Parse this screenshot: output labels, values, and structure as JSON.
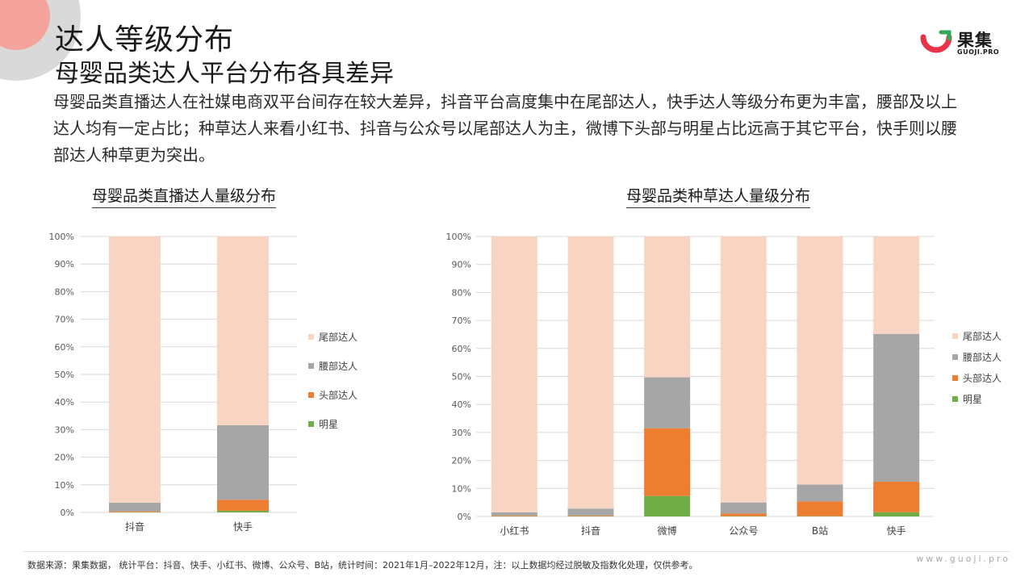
{
  "header": {
    "title": "达人等级分布",
    "subtitle": "母婴品类达人平台分布各具差异",
    "description": "母婴品类直播达人在社媒电商双平台间存在较大差异，抖音平台高度集中在尾部达人，快手达人等级分布更为丰富，腰部及以上达人均有一定占比；种草达人来看小红书、抖音与公众号以尾部达人为主，微博下头部与明星占比远高于其它平台，快手则以腰部达人种草更为突出。"
  },
  "logo": {
    "name": "果集",
    "domain": "GUOJI.PRO"
  },
  "footer": {
    "source": "数据来源：果集数据， 统计平台：抖音、快手、小红书、微博、公众号、B站，统计时间：2021年1月–2022年12月，注：以上数据均经过脱敏及指数化处理，仅供参考。",
    "site": "www.guoji.pro"
  },
  "colors": {
    "尾部达人": "#f8d5c2",
    "腰部达人": "#a6a6a6",
    "头部达人": "#ed7d31",
    "明星": "#70ad47"
  },
  "chart_data": [
    {
      "type": "bar",
      "stacked": true,
      "title": "母婴品类直播达人量级分布",
      "categories": [
        "抖音",
        "快手"
      ],
      "yticks": [
        "0%",
        "10%",
        "20%",
        "30%",
        "40%",
        "50%",
        "60%",
        "70%",
        "80%",
        "90%",
        "100%"
      ],
      "ylim": [
        0,
        100
      ],
      "legend_position": "right",
      "series": [
        {
          "name": "明星",
          "values": [
            0.1,
            0.6
          ]
        },
        {
          "name": "头部达人",
          "values": [
            0.3,
            4.0
          ]
        },
        {
          "name": "腰部达人",
          "values": [
            3.1,
            27.0
          ]
        },
        {
          "name": "尾部达人",
          "values": [
            96.5,
            68.4
          ]
        }
      ]
    },
    {
      "type": "bar",
      "stacked": true,
      "title": "母婴品类种草达人量级分布",
      "categories": [
        "小红书",
        "抖音",
        "微博",
        "公众号",
        "B站",
        "快手"
      ],
      "yticks": [
        "0%",
        "10%",
        "20%",
        "30%",
        "40%",
        "50%",
        "60%",
        "70%",
        "80%",
        "90%",
        "100%"
      ],
      "ylim": [
        0,
        100
      ],
      "legend_position": "right",
      "series": [
        {
          "name": "明星",
          "values": [
            0.1,
            0.1,
            7.3,
            0.1,
            0.1,
            1.5
          ]
        },
        {
          "name": "头部达人",
          "values": [
            0.2,
            0.2,
            24.2,
            0.9,
            5.3,
            10.9
          ]
        },
        {
          "name": "腰部达人",
          "values": [
            1.2,
            2.5,
            18.2,
            4.0,
            6.0,
            52.8
          ]
        },
        {
          "name": "尾部达人",
          "values": [
            98.5,
            97.2,
            50.3,
            95.0,
            88.6,
            34.8
          ]
        }
      ]
    }
  ]
}
